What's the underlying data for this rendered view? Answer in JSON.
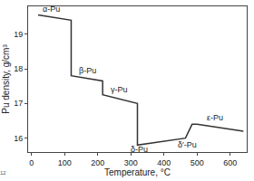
{
  "chart_data": {
    "type": "line",
    "color": "#333333",
    "x": [
      20,
      120,
      120,
      215,
      215,
      320,
      320,
      465,
      485,
      500,
      640
    ],
    "values": [
      19.55,
      19.4,
      17.8,
      17.65,
      17.25,
      17.0,
      15.8,
      16.0,
      16.4,
      16.4,
      16.2
    ],
    "x_label": "Temperature, °C",
    "y_label": "Pu density, g/cm³",
    "xlim": [
      -10,
      650
    ],
    "xticks": [
      0,
      100,
      200,
      300,
      400,
      500,
      600
    ],
    "ylim": [
      15.6,
      19.8
    ],
    "yticks": [
      16,
      17,
      18,
      19
    ],
    "grid": false,
    "annotations": [
      {
        "text": "α-Pu",
        "x": 60,
        "y": 19.72
      },
      {
        "text": "β-Pu",
        "x": 170,
        "y": 17.95
      },
      {
        "text": "γ-Pu",
        "x": 265,
        "y": 17.4
      },
      {
        "text": "δ-Pu",
        "x": 325,
        "y": 15.68
      },
      {
        "text": "δ'-Pu",
        "x": 470,
        "y": 15.82
      },
      {
        "text": "ε-Pu",
        "x": 555,
        "y": 16.6
      }
    ],
    "footnote": "12"
  }
}
